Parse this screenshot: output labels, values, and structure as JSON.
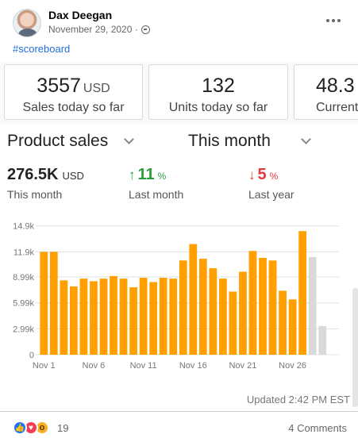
{
  "post": {
    "author": "Dax Deegan",
    "date": "November 29, 2020 ·",
    "hashtag": "#scoreboard",
    "reaction_count": "19",
    "comments": "4 Comments"
  },
  "kpis": [
    {
      "value": "3557",
      "unit": "USD",
      "label": "Sales today so far"
    },
    {
      "value": "132",
      "unit": "",
      "label": "Units today so far"
    },
    {
      "value": "48.3",
      "unit": "",
      "label": "Current"
    }
  ],
  "panel": {
    "metric_select": "Product sales",
    "period_select": "This month",
    "summary": {
      "value": "276.5K",
      "unit": "USD",
      "value_label": "This month",
      "last_month_arrow": "↑",
      "last_month_change": "11",
      "last_month_pct": "%",
      "last_month_label": "Last month",
      "last_year_arrow": "↓",
      "last_year_change": "5",
      "last_year_pct": "%",
      "last_year_label": "Last year"
    },
    "updated": "Updated 2:42 PM EST"
  },
  "colors": {
    "bar": "#FFA000",
    "bar_projected": "#D9D9D9",
    "grid": "#E0E0E0",
    "up": "#2A9D3A",
    "down": "#E03B3B"
  },
  "chart_data": {
    "type": "bar",
    "title": "",
    "xlabel": "",
    "ylabel": "",
    "ylim": [
      0,
      14960
    ],
    "yticks": [
      0,
      2990,
      5990,
      8990,
      11900,
      14900
    ],
    "ytick_labels": [
      "0",
      "2.99k",
      "5.99k",
      "8.99k",
      "11.9k",
      "14.9k"
    ],
    "x_tick_labels": [
      "Nov 1",
      "Nov 6",
      "Nov 11",
      "Nov 16",
      "Nov 21",
      "Nov 26"
    ],
    "categories": [
      "1",
      "2",
      "3",
      "4",
      "5",
      "6",
      "7",
      "8",
      "9",
      "10",
      "11",
      "12",
      "13",
      "14",
      "15",
      "16",
      "17",
      "18",
      "19",
      "20",
      "21",
      "22",
      "23",
      "24",
      "25",
      "26",
      "27",
      "28",
      "29",
      "30"
    ],
    "series": [
      {
        "values": [
          11900,
          11900,
          8600,
          7900,
          8800,
          8500,
          8800,
          9100,
          8800,
          7800,
          8900,
          8400,
          8900,
          8800,
          10900,
          12800,
          11100,
          10000,
          8800,
          7300,
          9600,
          12000,
          11200,
          10900,
          7400,
          6400,
          14300,
          0,
          0,
          0
        ]
      },
      {
        "values": [
          0,
          0,
          0,
          0,
          0,
          0,
          0,
          0,
          0,
          0,
          0,
          0,
          0,
          0,
          0,
          0,
          0,
          0,
          0,
          0,
          0,
          0,
          0,
          0,
          0,
          0,
          0,
          11300,
          3300,
          0
        ]
      }
    ],
    "grid": true
  }
}
